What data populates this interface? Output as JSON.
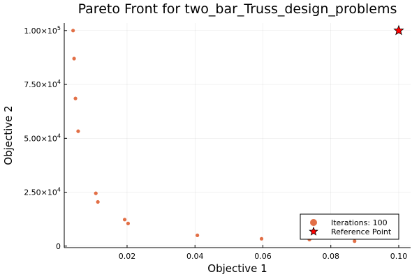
{
  "chart_data": {
    "type": "scatter",
    "title": "Pareto Front for two_bar_Truss_design_problems",
    "xlabel": "Objective 1",
    "ylabel": "Objective 2",
    "xlim": [
      0.0015,
      0.1035
    ],
    "ylim": [
      -700,
      103500
    ],
    "x_ticks": [
      {
        "value": 0.02,
        "label": "0.02"
      },
      {
        "value": 0.04,
        "label": "0.04"
      },
      {
        "value": 0.06,
        "label": "0.06"
      },
      {
        "value": 0.08,
        "label": "0.08"
      },
      {
        "value": 0.1,
        "label": "0.10"
      }
    ],
    "y_ticks": [
      {
        "value": 0,
        "mantissa": "0",
        "exponent": ""
      },
      {
        "value": 25000,
        "mantissa": "2.50×10",
        "exponent": "4"
      },
      {
        "value": 50000,
        "mantissa": "5.00×10",
        "exponent": "4"
      },
      {
        "value": 75000,
        "mantissa": "7.50×10",
        "exponent": "4"
      },
      {
        "value": 100000,
        "mantissa": "1.00×10",
        "exponent": "5"
      }
    ],
    "grid": true,
    "legend_position": "bottom-right",
    "series": [
      {
        "name": "Iterations: 100",
        "marker": "circle",
        "color": "#e26f46",
        "points": [
          {
            "x": 0.0041,
            "y": 100000
          },
          {
            "x": 0.0044,
            "y": 87000
          },
          {
            "x": 0.0048,
            "y": 68500
          },
          {
            "x": 0.0056,
            "y": 53300
          },
          {
            "x": 0.0108,
            "y": 24500
          },
          {
            "x": 0.0114,
            "y": 20500
          },
          {
            "x": 0.0193,
            "y": 12300
          },
          {
            "x": 0.0203,
            "y": 10500
          },
          {
            "x": 0.0407,
            "y": 5000
          },
          {
            "x": 0.0596,
            "y": 3400
          },
          {
            "x": 0.0737,
            "y": 3000
          },
          {
            "x": 0.087,
            "y": 2300
          }
        ]
      },
      {
        "name": "Reference Point",
        "marker": "star",
        "color": "#ff0000",
        "points": [
          {
            "x": 0.1,
            "y": 100000
          }
        ]
      }
    ]
  }
}
